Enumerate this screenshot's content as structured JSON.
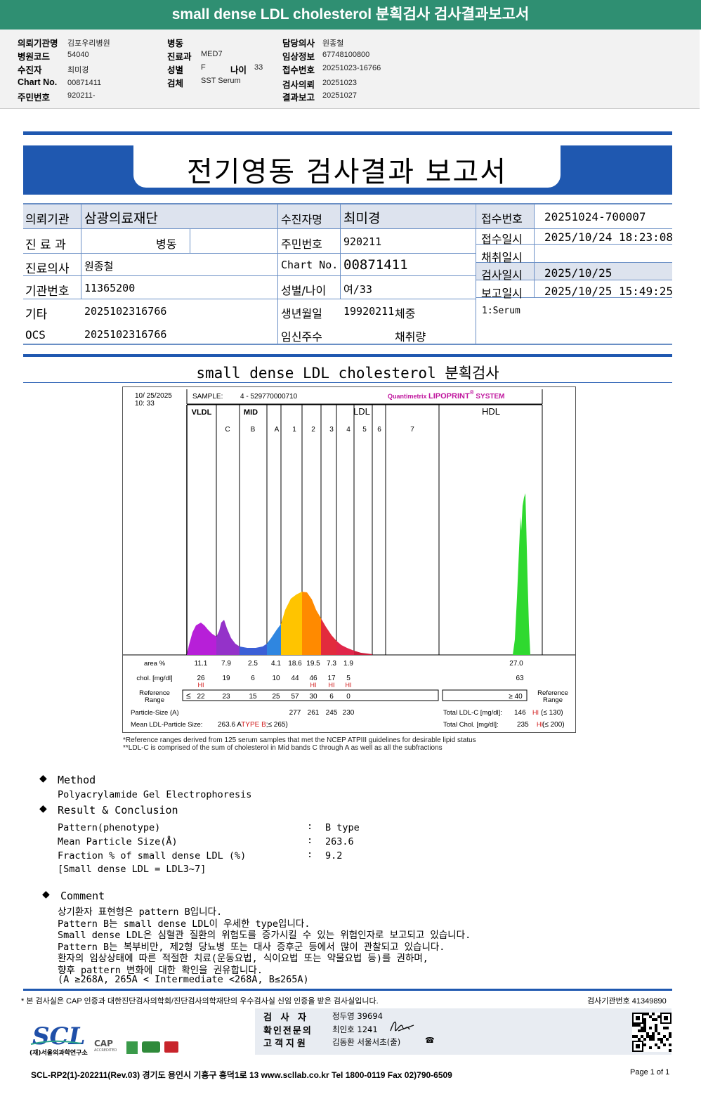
{
  "topbar": {
    "title": "small dense LDL cholesterol 분획검사 검사결과보고서"
  },
  "header": {
    "c1": [
      {
        "k": "의뢰기관명",
        "v": "김포우리병원"
      },
      {
        "k": "병원코드",
        "v": "54040"
      },
      {
        "k": "수진자",
        "v": "최미경"
      },
      {
        "k": "Chart No.",
        "v": "00871411"
      },
      {
        "k": "주민번호",
        "v": "920211-"
      }
    ],
    "c2": [
      {
        "k": "병동",
        "v": ""
      },
      {
        "k": "진료과",
        "v": "MED7"
      },
      {
        "k": "성별",
        "v": "F"
      },
      {
        "k": "검체",
        "v": "SST Serum"
      }
    ],
    "age_label": "나이",
    "age_value": "33",
    "c3": [
      {
        "k": "담당의사",
        "v": "원종철"
      },
      {
        "k": "임상정보",
        "v": "67748100800"
      },
      {
        "k": "접수번호",
        "v": "20251023-16766"
      },
      {
        "k": "검사의뢰",
        "v": "20251023"
      },
      {
        "k": "결과보고",
        "v": "20251027"
      }
    ]
  },
  "report": {
    "title": "전기영동 검사결과 보고서",
    "inst_label": "의뢰기관",
    "inst_value": "삼광의료재단",
    "dept_label": "진 료 과",
    "dept_value": "병동",
    "doctor_label": "진료의사",
    "doctor_value": "원종철",
    "instno_label": "기관번호",
    "instno_value": "11365200",
    "etc_label": "기타",
    "etc_value": "2025102316766",
    "ocs_label": "OCS",
    "ocs_value": "2025102316766",
    "patient_label": "수진자명",
    "patient_value": "최미경",
    "ssn_label": "주민번호",
    "ssn_value": "920211",
    "chart_label": "Chart No.",
    "chart_value": "00871411",
    "sexage_label": "성별/나이",
    "sexage_value": "여/33",
    "birth_label": "생년월일",
    "birth_value": "19920211",
    "weight_label": "체중",
    "preg_label": "임신주수",
    "collect_label": "채취량",
    "recno_label": "접수번호",
    "recno_value": "20251024-700007",
    "recdate_label": "접수일시",
    "recdate_value": "2025/10/24 18:23:08",
    "coldate_label": "채취일시",
    "coldate_value": "",
    "testdate_label": "검사일시",
    "testdate_value": "2025/10/25",
    "repdate_label": "보고일시",
    "repdate_value": "2025/10/25 15:49:25",
    "specimen": "1:Serum"
  },
  "section_title": "small dense LDL cholesterol 분획검사",
  "lipo": {
    "date": "10/ 25/2025",
    "time": "10: 33",
    "sample_label": "SAMPLE:",
    "sample_value": "4 - 529770000710",
    "brand_a": "Quantimetrix",
    "brand_b": "LIPOPRINT",
    "brand_sup": "®",
    "brand_c": "SYSTEM",
    "groups": [
      "VLDL",
      "MID",
      "LDL",
      "HDL"
    ],
    "bands": [
      "C",
      "B",
      "A",
      "1",
      "2",
      "3",
      "4",
      "5",
      "6",
      "7"
    ],
    "area_label": "area %",
    "area_values": [
      "11.1",
      "7.9",
      "2.5",
      "4.1",
      "18.6",
      "19.5",
      "7.3",
      "1.9"
    ],
    "area_hdl": "27.0",
    "chol_label": "chol. [mg/dl]",
    "chol_values": [
      "26",
      "19",
      "6",
      "10",
      "44",
      "46",
      "17",
      "5"
    ],
    "chol_hdl": "63",
    "hi": "HI",
    "ref_label_a": "Reference",
    "ref_label_b": "Range",
    "ref_le": "≤",
    "ref_values": [
      "22",
      "23",
      "15",
      "25",
      "57",
      "30",
      "6",
      "0"
    ],
    "ref_hdl": "≥  40",
    "size_label": "Particle-Size (A)",
    "size_values": [
      "277",
      "261",
      "245",
      "230"
    ],
    "mean_label": "Mean LDL-Particle Size:",
    "mean_value": "263.6 ATYPE B;≤ 265)",
    "ldl_label": "Total LDL-C [mg/dl]:",
    "ldl_value": "146",
    "ldl_ref": "(≤ 130)",
    "tchol_label": "Total Chol. [mg/dl]:",
    "tchol_value": "235",
    "tchol_ref": "(≤ 200)",
    "foot1": "*Reference ranges derived from 125 serum samples that met the NCEP ATPIII guidelines for desirable lipid status",
    "foot2": "**LDL-C is comprised of the sum of cholesterol in Mid bands C through A as well as all the subfractions"
  },
  "method": {
    "title": "Method",
    "text": "Polyacrylamide Gel Electrophoresis"
  },
  "result": {
    "title": "Result & Conclusion",
    "rows": [
      {
        "k": "Pattern(phenotype)",
        "v": "B type"
      },
      {
        "k": "Mean Particle Size(Å)",
        "v": "263.6"
      },
      {
        "k": "Fraction % of small dense LDL (%)",
        "v": "9.2"
      }
    ],
    "note": "[Small dense LDL = LDL3~7]"
  },
  "comment": {
    "title": "Comment",
    "lines": [
      "상기환자 표현형은 pattern B입니다.",
      "Pattern B는 small dense LDL이 우세한 type입니다.",
      "Small dense LDL은 심혈관 질환의 위험도를 증가시킬 수 있는 위험인자로 보고되고 있습니다.",
      "Pattern B는 복부비만, 제2형 당뇨병 또는 대사 증후군 등에서 많이 관찰되고 있습니다.",
      "환자의 임상상태에 따른 적절한 치료(운동요법, 식이요법 또는 약물요법 등)를 권하며,",
      "향후 pattern 변화에 대한 확인을 권유합니다.",
      "(A ≥268A, 265A < Intermediate <268A, B≤265A)"
    ]
  },
  "footer": {
    "cert": "* 본 검사실은 CAP 인증과 대한진단검사의학회/진단검사의학재단의 우수검사실 신임 인증을 받은 검사실입니다.",
    "labno": "검사기관번호  41349890",
    "tester_label": "검  사  자",
    "tester_value": "정두영 39694",
    "confirm_label": "확인전문의",
    "confirm_value": "최인호 1241",
    "support_label": "고객지원",
    "support_value": "김동환 서울서초(출)",
    "logo": "SCL",
    "logo_sub": "(재)서울의과학연구소",
    "cap": "CAP",
    "cap_sub": "ACCREDITED",
    "addr": "SCL-RP2(1)-202211(Rev.03)  경기도 용인시 기흥구 흥덕1로 13  www.scllab.co.kr  Tel 1800-0119  Fax 02)790-6509",
    "page": "Page 1 of 1"
  }
}
